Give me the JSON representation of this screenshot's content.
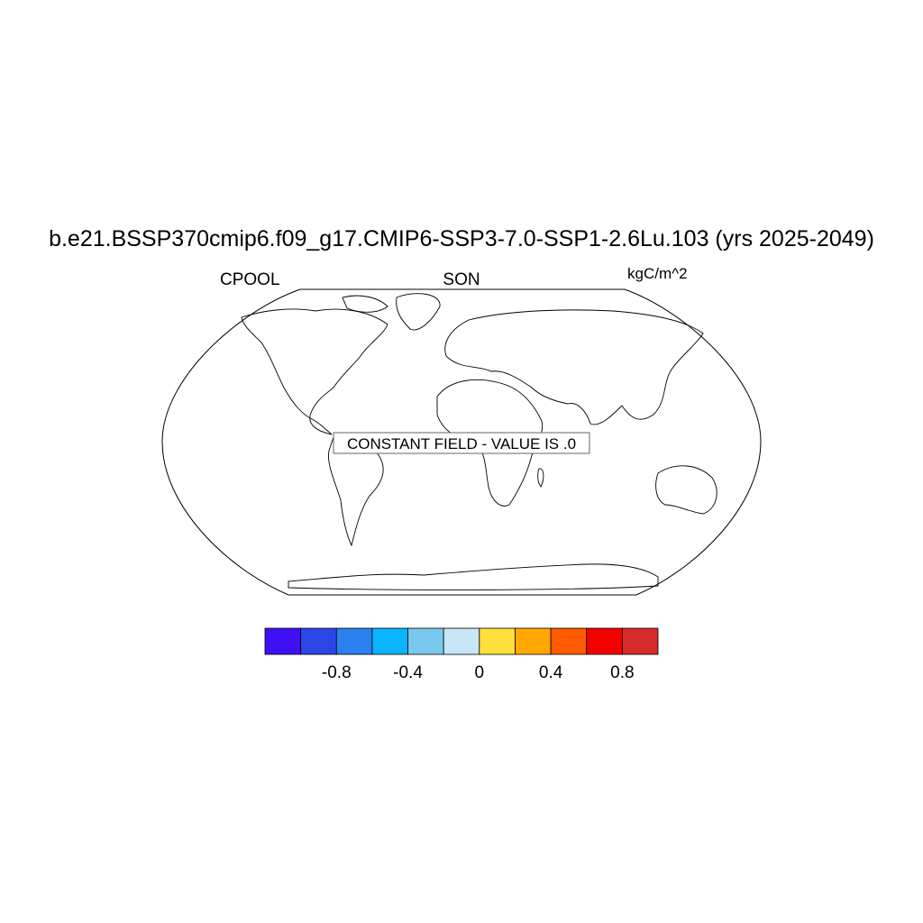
{
  "title": "b.e21.BSSP370cmip6.f09_g17.CMIP6-SSP3-7.0-SSP1-2.6Lu.103 (yrs 2025-2049)",
  "left_string": "CPOOL",
  "center_string": "SON",
  "right_string": "kgC/m^2",
  "annotation": "CONSTANT FIELD - VALUE IS .0",
  "projection": "Robinson",
  "colorbar": {
    "levels": [
      -1.0,
      -0.8,
      -0.6,
      -0.4,
      -0.2,
      0,
      0.2,
      0.4,
      0.6,
      0.8
    ],
    "tick_labels": [
      "-0.8",
      "-0.4",
      "0",
      "0.4",
      "0.8"
    ],
    "tick_values": [
      -0.8,
      -0.4,
      0,
      0.4,
      0.8
    ],
    "colors": [
      "#3f10f5",
      "#2c46e6",
      "#2a80ee",
      "#0bb4ff",
      "#7bc8ee",
      "#c8e6f8",
      "#ffe03a",
      "#ffa800",
      "#ff5a00",
      "#f50000",
      "#d62b2b"
    ]
  }
}
